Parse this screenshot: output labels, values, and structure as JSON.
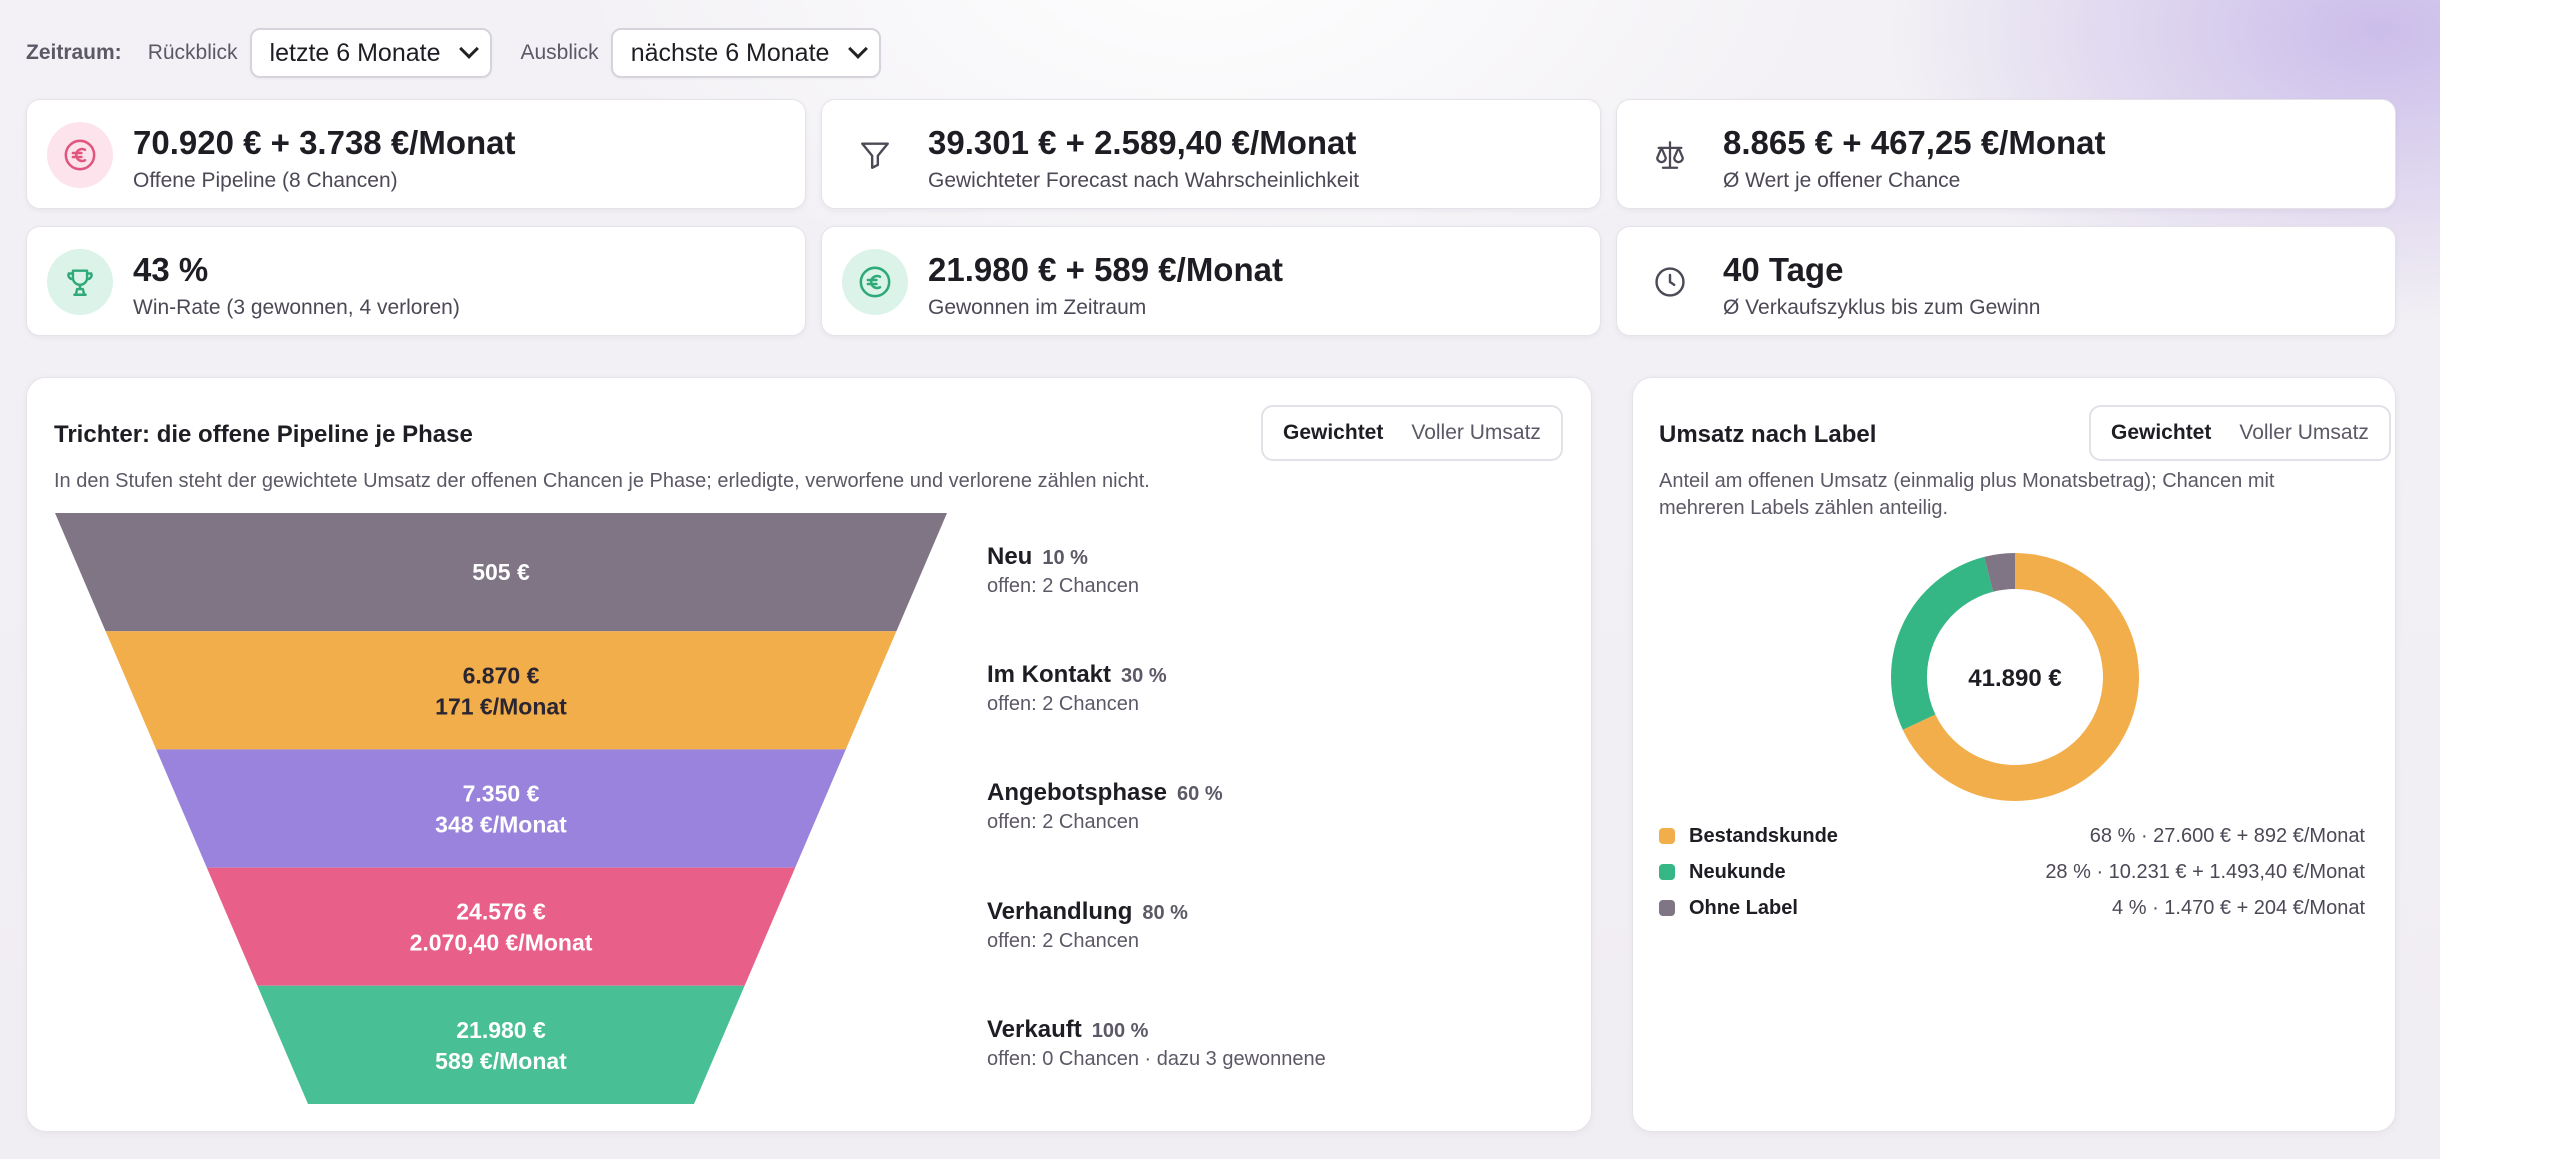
{
  "filters": {
    "zeitraum_label": "Zeitraum:",
    "rueckblick_label": "Rückblick",
    "rueckblick_value": "letzte 6 Monate",
    "ausblick_label": "Ausblick",
    "ausblick_value": "nächste 6 Monate"
  },
  "kpis": [
    {
      "value": "70.920 € + 3.738 €/Monat",
      "label": "Offene Pipeline (8 Chancen)",
      "icon": "euro-circle-icon"
    },
    {
      "value": "39.301 € + 2.589,40 €/Monat",
      "label": "Gewichteter Forecast nach Wahrscheinlichkeit",
      "icon": "filter-icon"
    },
    {
      "value": "8.865 € + 467,25 €/Monat",
      "label": "Ø Wert je offener Chance",
      "icon": "scale-icon"
    },
    {
      "value": "43 %",
      "label": "Win-Rate (3 gewonnen, 4 verloren)",
      "icon": "trophy-icon"
    },
    {
      "value": "21.980 € + 589 €/Monat",
      "label": "Gewonnen im Zeitraum",
      "icon": "euro-circle-icon"
    },
    {
      "value": "40 Tage",
      "label": "Ø Verkaufszyklus bis zum Gewinn",
      "icon": "clock-icon"
    }
  ],
  "funnel": {
    "title": "Trichter: die offene Pipeline je Phase",
    "description": "In den Stufen steht der gewichtete Umsatz der offenen Chancen je Phase; erledigte, verworfene und verlorene zählen nicht.",
    "toggle": {
      "weighted": "Gewichtet",
      "full": "Voller Umsatz",
      "active": "weighted"
    },
    "stages": [
      {
        "name": "Neu",
        "probability": "10 %",
        "open": "offen: 2 Chancen",
        "line1": "505 €",
        "line2": "",
        "color": "#7f7584"
      },
      {
        "name": "Im Kontakt",
        "probability": "30 %",
        "open": "offen: 2 Chancen",
        "line1": "6.870 €",
        "line2": "171 €/Monat",
        "color": "#f2ae4b"
      },
      {
        "name": "Angebotsphase",
        "probability": "60 %",
        "open": "offen: 2 Chancen",
        "line1": "7.350 €",
        "line2": "348 €/Monat",
        "color": "#9a83dc"
      },
      {
        "name": "Verhandlung",
        "probability": "80 %",
        "open": "offen: 2 Chancen",
        "line1": "24.576 €",
        "line2": "2.070,40 €/Monat",
        "color": "#e8608a"
      },
      {
        "name": "Verkauft",
        "probability": "100 %",
        "open": "offen: 0 Chancen · dazu 3 gewonnene",
        "line1": "21.980 €",
        "line2": "589 €/Monat",
        "color": "#48bf95"
      }
    ]
  },
  "labels_panel": {
    "title": "Umsatz nach Label",
    "description": "Anteil am offenen Umsatz (einmalig plus Monatsbetrag); Chancen mit mehreren Labels zählen anteilig.",
    "toggle": {
      "weighted": "Gewichtet",
      "full": "Voller Umsatz",
      "active": "weighted"
    },
    "donut_total": "41.890 €",
    "chart_data": {
      "type": "pie",
      "categories": [
        "Bestandskunde",
        "Neukunde",
        "Ohne Label"
      ],
      "values": [
        68,
        28,
        4
      ],
      "center_label": "41.890 €",
      "colors": [
        "#f2ae4b",
        "#34b785",
        "#7f7584"
      ]
    },
    "legend": [
      {
        "name": "Bestandskunde",
        "value": "68 % · 27.600 € + 892 €/Monat",
        "color": "#f2ae4b"
      },
      {
        "name": "Neukunde",
        "value": "28 % · 10.231 € + 1.493,40 €/Monat",
        "color": "#34b785"
      },
      {
        "name": "Ohne Label",
        "value": "4 % · 1.470 € + 204 €/Monat",
        "color": "#7f7584"
      }
    ]
  }
}
